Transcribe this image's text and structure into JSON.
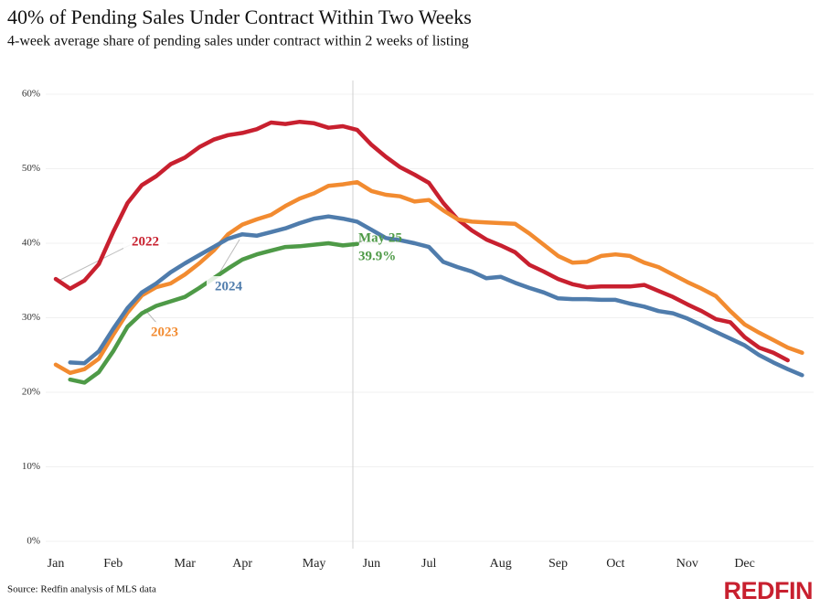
{
  "chart_data": {
    "type": "line",
    "title": "40% of Pending Sales Under Contract Within Two Weeks",
    "subtitle": "4-week average share of pending sales under contract within 2 weeks of listing",
    "source": "Source: Redfin analysis of MLS data",
    "logo": "REDFIN",
    "annotation": "May 25",
    "categories": [
      "Jan",
      null,
      null,
      null,
      "Feb",
      null,
      null,
      null,
      null,
      "Mar",
      null,
      null,
      null,
      "Apr",
      null,
      null,
      null,
      null,
      "May",
      null,
      null,
      null,
      "Jun",
      null,
      null,
      null,
      "Jul",
      null,
      null,
      null,
      null,
      "Aug",
      null,
      null,
      null,
      "Sep",
      null,
      null,
      null,
      "Oct",
      null,
      null,
      null,
      null,
      "Nov",
      null,
      null,
      null,
      "Dec",
      null,
      null,
      null,
      null
    ],
    "ylim": [
      0,
      60
    ],
    "yticks": [
      {
        "value": 0,
        "label": "0%"
      },
      {
        "value": 10,
        "label": "10%"
      },
      {
        "value": 20,
        "label": "20%"
      },
      {
        "value": 30,
        "label": "30%"
      },
      {
        "value": 40,
        "label": "40%"
      },
      {
        "value": 50,
        "label": "50%"
      },
      {
        "value": 60,
        "label": "60%"
      }
    ],
    "grid": true,
    "series": [
      {
        "name": "2022",
        "color": "#c8202f",
        "values": [
          35.2,
          33.9,
          35.0,
          37.2,
          41.5,
          45.4,
          47.8,
          49.0,
          50.6,
          51.5,
          52.9,
          53.9,
          54.5,
          54.8,
          55.3,
          56.2,
          56.0,
          56.3,
          56.1,
          55.5,
          55.7,
          55.2,
          53.2,
          51.6,
          50.2,
          49.2,
          48.1,
          45.4,
          43.2,
          41.7,
          40.5,
          39.7,
          38.8,
          37.1,
          36.2,
          35.2,
          34.5,
          34.1,
          34.2,
          34.2,
          34.2,
          34.4,
          33.6,
          32.8,
          31.8,
          30.9,
          29.8,
          29.4,
          27.4,
          26.0,
          25.3,
          24.3,
          null
        ]
      },
      {
        "name": "2023",
        "color": "#f28b30",
        "values": [
          23.7,
          22.6,
          23.1,
          24.5,
          27.7,
          30.7,
          33.0,
          34.1,
          34.6,
          35.8,
          37.3,
          39.0,
          41.2,
          42.5,
          43.2,
          43.8,
          45.0,
          46.0,
          46.7,
          47.7,
          47.9,
          48.2,
          47.0,
          46.5,
          46.3,
          45.6,
          45.8,
          44.4,
          43.2,
          42.9,
          42.8,
          42.7,
          42.6,
          41.3,
          39.8,
          38.3,
          37.4,
          37.5,
          38.3,
          38.5,
          38.3,
          37.4,
          36.8,
          35.8,
          34.8,
          33.9,
          32.9,
          30.9,
          29.1,
          28.0,
          27.0,
          26.0,
          25.3
        ]
      },
      {
        "name": "2024",
        "color": "#4f7cac",
        "values": [
          null,
          24.0,
          23.9,
          25.5,
          28.5,
          31.3,
          33.4,
          34.6,
          36.1,
          37.3,
          38.4,
          39.5,
          40.6,
          41.2,
          41.0,
          41.5,
          42.0,
          42.7,
          43.3,
          43.6,
          43.3,
          42.9,
          41.8,
          40.7,
          40.4,
          40.0,
          39.5,
          37.5,
          36.8,
          36.2,
          35.3,
          35.5,
          34.7,
          34.0,
          33.4,
          32.6,
          32.5,
          32.5,
          32.4,
          32.4,
          31.9,
          31.5,
          30.9,
          30.6,
          29.9,
          29.0,
          28.1,
          27.2,
          26.3,
          25.0,
          24.0,
          23.1,
          22.3
        ]
      },
      {
        "color": "#4e9a47",
        "values": [
          null,
          21.7,
          21.3,
          22.7,
          25.5,
          28.8,
          30.6,
          31.6,
          32.2,
          32.8,
          34.0,
          35.3,
          36.6,
          37.8,
          38.5,
          39.0,
          39.5,
          39.6,
          39.8,
          40.0,
          39.7,
          39.9,
          null,
          null,
          null,
          null,
          null,
          null,
          null,
          null,
          null,
          null,
          null,
          null,
          null,
          null,
          null,
          null,
          null,
          null,
          null,
          null,
          null,
          null,
          null,
          null,
          null,
          null,
          null,
          null,
          null,
          null,
          null
        ],
        "value_labels": [
          null,
          null,
          null,
          null,
          null,
          null,
          null,
          null,
          null,
          null,
          null,
          null,
          null,
          null,
          null,
          null,
          null,
          null,
          null,
          null,
          null,
          "39.9%",
          null,
          null,
          null,
          null,
          null,
          null,
          null,
          null,
          null,
          null,
          null,
          null,
          null,
          null,
          null,
          null,
          null,
          null,
          null,
          null,
          null,
          null,
          null,
          null,
          null,
          null,
          null,
          null,
          null,
          null,
          null
        ]
      }
    ]
  }
}
